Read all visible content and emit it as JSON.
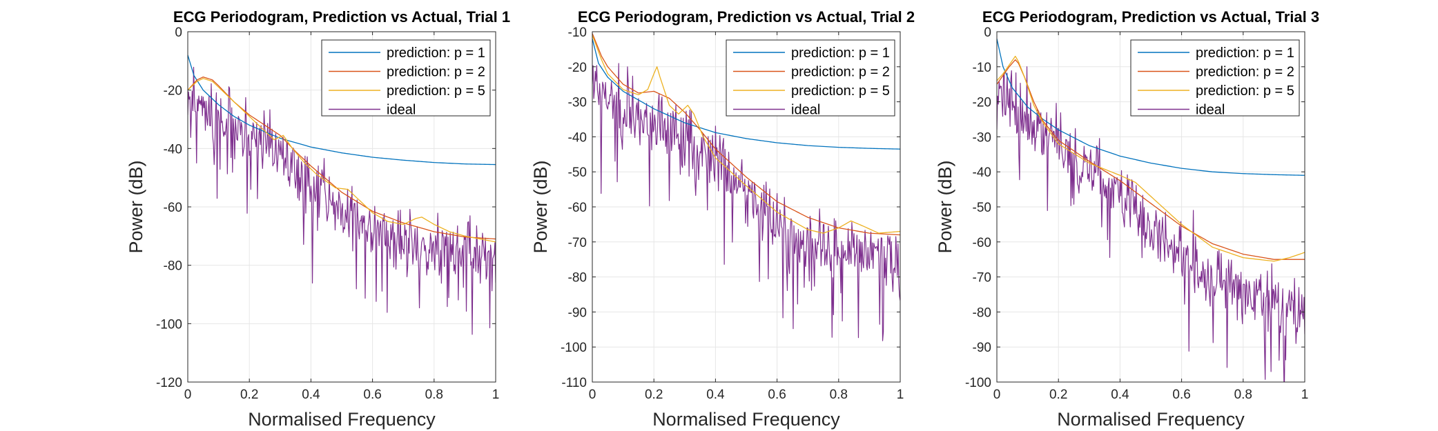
{
  "figure": {
    "background": "#ffffff"
  },
  "colors": {
    "series": [
      "#0072BD",
      "#D95319",
      "#EDB120",
      "#7E2F8E"
    ],
    "grid": "#e6e6e6",
    "axes": "#262626"
  },
  "chart_data": [
    {
      "type": "line",
      "title": "ECG Periodogram, Prediction vs Actual, Trial 1",
      "xlabel": "Normalised Frequency",
      "ylabel": "Power (dB)",
      "xlim": [
        0,
        1
      ],
      "ylim": [
        -120,
        0
      ],
      "xticks": [
        0,
        0.2,
        0.4,
        0.6,
        0.8,
        1
      ],
      "yticks": [
        -120,
        -100,
        -80,
        -60,
        -40,
        -20,
        0
      ],
      "grid": true,
      "legend": "top-right",
      "series": [
        {
          "name": "prediction: p = 1",
          "x": [
            0,
            0.02,
            0.05,
            0.1,
            0.15,
            0.2,
            0.3,
            0.4,
            0.5,
            0.6,
            0.7,
            0.8,
            0.9,
            1.0
          ],
          "y": [
            -8,
            -15,
            -20,
            -25,
            -29,
            -32,
            -36.5,
            -39.5,
            -41.5,
            -43,
            -44,
            -44.8,
            -45.3,
            -45.5
          ]
        },
        {
          "name": "prediction: p = 2",
          "x": [
            0,
            0.03,
            0.05,
            0.08,
            0.1,
            0.15,
            0.2,
            0.25,
            0.3,
            0.35,
            0.4,
            0.5,
            0.6,
            0.7,
            0.8,
            0.9,
            1.0
          ],
          "y": [
            -20,
            -16.5,
            -15.5,
            -16.5,
            -18.5,
            -24,
            -28.5,
            -32,
            -35.5,
            -41,
            -46,
            -55,
            -61.5,
            -65.5,
            -68.5,
            -70.3,
            -71
          ]
        },
        {
          "name": "prediction: p = 5",
          "x": [
            0,
            0.03,
            0.05,
            0.08,
            0.1,
            0.15,
            0.2,
            0.25,
            0.28,
            0.31,
            0.34,
            0.38,
            0.42,
            0.48,
            0.52,
            0.56,
            0.6,
            0.65,
            0.7,
            0.74,
            0.76,
            0.8,
            0.85,
            0.9,
            1.0
          ],
          "y": [
            -20,
            -17,
            -16,
            -17,
            -19,
            -24,
            -29,
            -34,
            -37,
            -35.5,
            -40,
            -45,
            -49,
            -53.5,
            -54,
            -58,
            -62,
            -65,
            -66,
            -64,
            -63.5,
            -66,
            -68.5,
            -70,
            -72
          ]
        },
        {
          "name": "ideal",
          "noisy": true,
          "points": 420,
          "seed": 11,
          "spread": 9,
          "x": [
            0,
            0.05,
            0.1,
            0.2,
            0.3,
            0.4,
            0.5,
            0.6,
            0.7,
            0.8,
            0.9,
            1.0
          ],
          "y": [
            -22,
            -25,
            -31,
            -36,
            -43,
            -53,
            -61,
            -68,
            -72,
            -74,
            -76,
            -78
          ]
        }
      ]
    },
    {
      "type": "line",
      "title": "ECG Periodogram, Prediction vs Actual, Trial 2",
      "xlabel": "Normalised Frequency",
      "ylabel": "Power (dB)",
      "xlim": [
        0,
        1
      ],
      "ylim": [
        -110,
        -10
      ],
      "xticks": [
        0,
        0.2,
        0.4,
        0.6,
        0.8,
        1
      ],
      "yticks": [
        -110,
        -100,
        -90,
        -80,
        -70,
        -60,
        -50,
        -40,
        -30,
        -20,
        -10
      ],
      "grid": true,
      "legend": "top-right",
      "series": [
        {
          "name": "prediction: p = 1",
          "x": [
            0,
            0.02,
            0.05,
            0.1,
            0.15,
            0.2,
            0.3,
            0.4,
            0.5,
            0.6,
            0.7,
            0.8,
            0.9,
            1.0
          ],
          "y": [
            -12,
            -19,
            -23,
            -27,
            -29.5,
            -32,
            -36,
            -38.8,
            -40.5,
            -41.7,
            -42.5,
            -43,
            -43.3,
            -43.5
          ]
        },
        {
          "name": "prediction: p = 2",
          "x": [
            0,
            0.03,
            0.05,
            0.08,
            0.1,
            0.15,
            0.2,
            0.25,
            0.3,
            0.35,
            0.4,
            0.5,
            0.6,
            0.7,
            0.8,
            0.9,
            1.0
          ],
          "y": [
            -10.5,
            -17,
            -20,
            -23,
            -25,
            -27.5,
            -27,
            -29,
            -33,
            -38,
            -43.5,
            -51.5,
            -58.5,
            -63,
            -66,
            -67.5,
            -68
          ]
        },
        {
          "name": "prediction: p = 5",
          "x": [
            0,
            0.03,
            0.05,
            0.1,
            0.15,
            0.18,
            0.2,
            0.21,
            0.22,
            0.25,
            0.28,
            0.31,
            0.33,
            0.36,
            0.4,
            0.5,
            0.6,
            0.7,
            0.75,
            0.8,
            0.84,
            0.88,
            0.93,
            1.0
          ],
          "y": [
            -11,
            -18,
            -22,
            -26.5,
            -28,
            -26.5,
            -22,
            -20,
            -23,
            -31,
            -33.5,
            -31,
            -33.5,
            -40,
            -46,
            -54,
            -61.5,
            -66.5,
            -67.5,
            -66,
            -64,
            -65.5,
            -67.5,
            -67
          ]
        },
        {
          "name": "ideal",
          "noisy": true,
          "points": 420,
          "seed": 23,
          "spread": 8,
          "x": [
            0,
            0.05,
            0.1,
            0.2,
            0.3,
            0.4,
            0.5,
            0.6,
            0.7,
            0.8,
            0.9,
            1.0
          ],
          "y": [
            -22,
            -29,
            -33,
            -36,
            -41,
            -47,
            -56,
            -66,
            -72,
            -74,
            -74,
            -75
          ]
        }
      ]
    },
    {
      "type": "line",
      "title": "ECG Periodogram, Prediction vs Actual, Trial 3",
      "xlabel": "Normalised Frequency",
      "ylabel": "Power (dB)",
      "xlim": [
        0,
        1
      ],
      "ylim": [
        -100,
        0
      ],
      "xticks": [
        0,
        0.2,
        0.4,
        0.6,
        0.8,
        1
      ],
      "yticks": [
        -100,
        -90,
        -80,
        -70,
        -60,
        -50,
        -40,
        -30,
        -20,
        -10,
        0
      ],
      "grid": true,
      "legend": "top-right",
      "series": [
        {
          "name": "prediction: p = 1",
          "x": [
            0,
            0.02,
            0.05,
            0.1,
            0.15,
            0.2,
            0.3,
            0.4,
            0.5,
            0.6,
            0.7,
            0.8,
            0.9,
            1.0
          ],
          "y": [
            -2,
            -10,
            -16,
            -21.5,
            -25,
            -28,
            -32.5,
            -35.5,
            -37.5,
            -39,
            -40,
            -40.5,
            -40.8,
            -41
          ]
        },
        {
          "name": "prediction: p = 2",
          "x": [
            0,
            0.02,
            0.04,
            0.06,
            0.07,
            0.09,
            0.12,
            0.15,
            0.2,
            0.3,
            0.4,
            0.5,
            0.6,
            0.7,
            0.8,
            0.9,
            1.0
          ],
          "y": [
            -15,
            -12.5,
            -10,
            -8,
            -9,
            -13,
            -20,
            -25.5,
            -31,
            -37,
            -42.5,
            -49,
            -55.5,
            -60.5,
            -63.5,
            -65,
            -65
          ]
        },
        {
          "name": "prediction: p = 5",
          "x": [
            0,
            0.02,
            0.04,
            0.06,
            0.07,
            0.09,
            0.12,
            0.15,
            0.2,
            0.3,
            0.4,
            0.45,
            0.5,
            0.6,
            0.7,
            0.8,
            0.9,
            0.95,
            1.0
          ],
          "y": [
            -14,
            -12,
            -9.5,
            -7,
            -8.5,
            -13,
            -21,
            -26,
            -32,
            -37.5,
            -41,
            -43,
            -47,
            -55,
            -61.5,
            -64.5,
            -65.5,
            -64.5,
            -63
          ]
        },
        {
          "name": "ideal",
          "noisy": true,
          "points": 420,
          "seed": 37,
          "spread": 8,
          "x": [
            0,
            0.05,
            0.1,
            0.2,
            0.3,
            0.4,
            0.5,
            0.6,
            0.7,
            0.8,
            0.9,
            1.0
          ],
          "y": [
            -15,
            -20,
            -26,
            -33,
            -40,
            -47,
            -55,
            -63,
            -70,
            -75,
            -77,
            -80
          ]
        }
      ]
    }
  ]
}
